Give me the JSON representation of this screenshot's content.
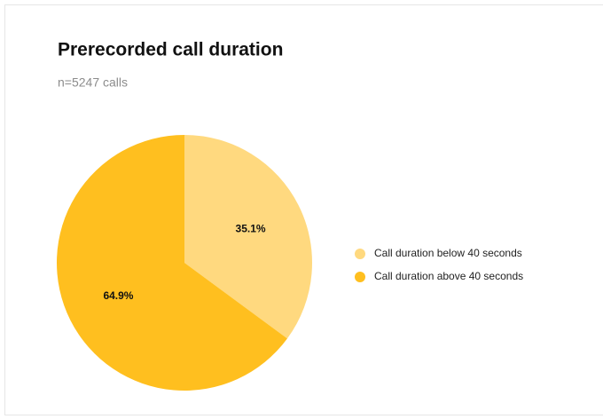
{
  "chart_data": {
    "type": "pie",
    "title": "Prerecorded call duration",
    "subtitle": "n=5247 calls",
    "categories": [
      "Call duration below 40 seconds",
      "Call duration above 40 seconds"
    ],
    "values": [
      35.1,
      64.9
    ],
    "value_labels": [
      "35.1%",
      "64.9%"
    ],
    "colors": [
      "#ffd97f",
      "#ffbf1f"
    ]
  }
}
